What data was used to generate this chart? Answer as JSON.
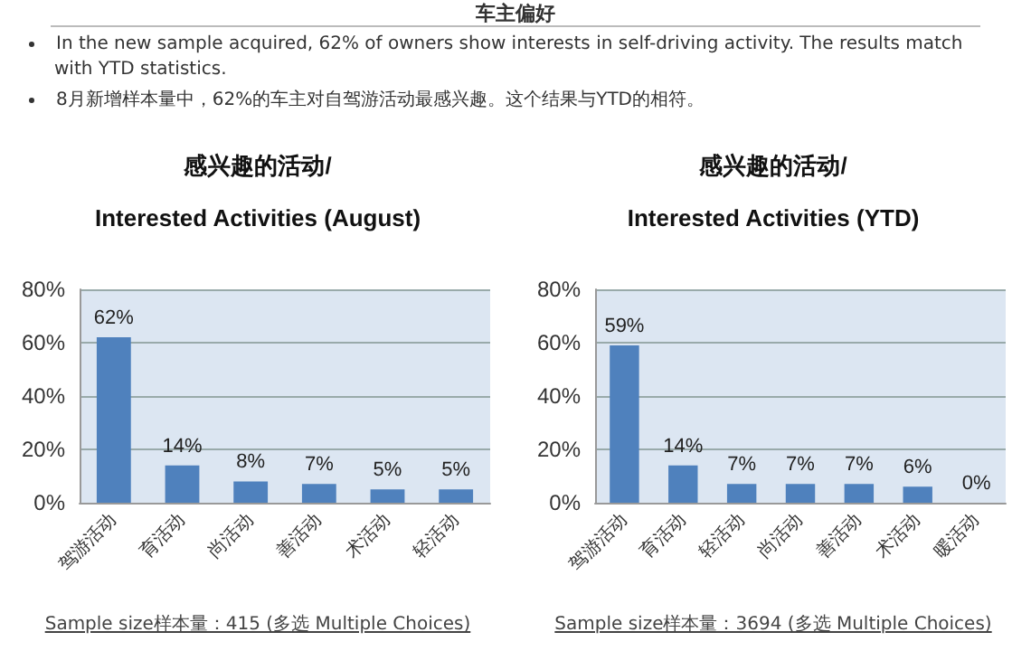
{
  "chart_data": [
    {
      "type": "bar",
      "title": "感兴趣的活动/",
      "subtitle": "Interested Activities (August)",
      "annotations": [
        "车主偏好",
        "In the new sample acquired, 62% of owners show interests in self-driving activity. The results  match with YTD statistics.",
        "8月新增样本量中，62%的车主对自驾游活动最感兴趣。这个结果与YTD的相符。",
        "Sample size样本量：415 (多选 Multiple Choices)"
      ],
      "categories": [
        "驾游活动",
        "育活动",
        "尚活动",
        "善活动",
        "术活动",
        "轻活动"
      ],
      "values": [
        62,
        14,
        8,
        7,
        5,
        5
      ],
      "value_labels": [
        "62%",
        "14%",
        "8%",
        "7%",
        "5%",
        "5%"
      ],
      "color": "#4f81bd",
      "ylim": [
        0,
        80
      ],
      "yticks": [
        {
          "value": 0,
          "label": "0%"
        },
        {
          "value": 20,
          "label": "20%"
        },
        {
          "value": 40,
          "label": "40%"
        },
        {
          "value": 60,
          "label": "60%"
        },
        {
          "value": 80,
          "label": "80%"
        }
      ],
      "grid": "y"
    },
    {
      "type": "bar",
      "title": "感兴趣的活动/",
      "subtitle": "Interested Activities (YTD)",
      "annotations": [
        "Sample size样本量：3694 (多选 Multiple Choices)"
      ],
      "categories": [
        "驾游活动",
        "育活动",
        "轻活动",
        "尚活动",
        "善活动",
        "术活动",
        "暖活动"
      ],
      "values": [
        59,
        14,
        7,
        7,
        7,
        6,
        0
      ],
      "value_labels": [
        "59%",
        "14%",
        "7%",
        "7%",
        "7%",
        "6%",
        "0%"
      ],
      "color": "#4f81bd",
      "ylim": [
        0,
        80
      ],
      "yticks": [
        {
          "value": 0,
          "label": "0%"
        },
        {
          "value": 20,
          "label": "20%"
        },
        {
          "value": 40,
          "label": "40%"
        },
        {
          "value": 60,
          "label": "60%"
        },
        {
          "value": 80,
          "label": "80%"
        }
      ],
      "grid": "y"
    }
  ]
}
